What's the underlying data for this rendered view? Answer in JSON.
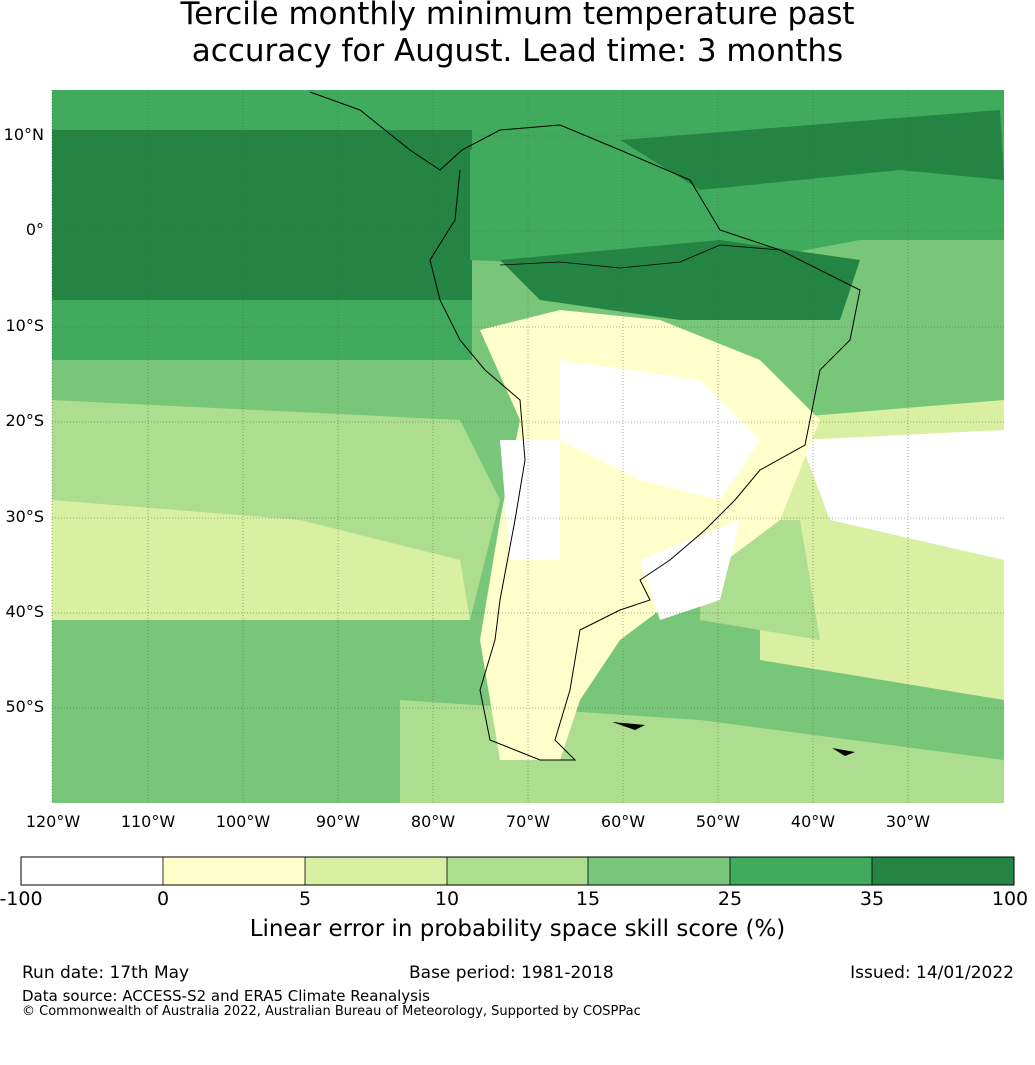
{
  "title_line1": "Tercile monthly minimum temperature past",
  "title_line2": "accuracy for August. Lead time: 3 months",
  "lat_labels": [
    "10°N",
    "0°",
    "10°S",
    "20°S",
    "30°S",
    "40°S",
    "50°S"
  ],
  "lon_labels": [
    "120°W",
    "110°W",
    "100°W",
    "90°W",
    "80°W",
    "70°W",
    "60°W",
    "50°W",
    "40°W",
    "30°W"
  ],
  "colorbar": {
    "label": "Linear error in probability space skill score (%)",
    "ticks": [
      "-100",
      "0",
      "5",
      "10",
      "15",
      "25",
      "35",
      "100"
    ],
    "colors": [
      "#ffffff",
      "#ffffcc",
      "#d9f0a3",
      "#addd8e",
      "#78c679",
      "#41ab5d",
      "#238443"
    ]
  },
  "footer": {
    "run_date": "Run date: 17th May",
    "base_period": "Base period: 1981-2018",
    "issued": "Issued: 14/01/2022",
    "data_source": "Data source: ACCESS-S2 and ERA5 Climate Reanalysis",
    "copyright": "© Commonwealth of Australia 2022, Australian Bureau of Meteorology, Supported by COSPPac"
  }
}
